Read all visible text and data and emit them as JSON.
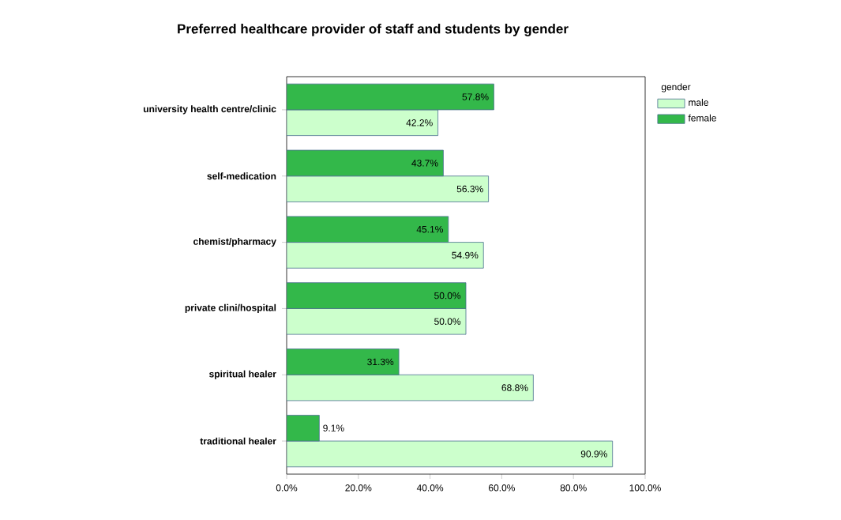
{
  "chart_data": {
    "type": "bar",
    "orientation": "horizontal",
    "title": "Preferred healthcare provider of staff and students by gender",
    "categories": [
      "university health centre/clinic",
      "self-medication",
      "chemist/pharmacy",
      "private clini/hospital",
      "spiritual healer",
      "traditional healer"
    ],
    "series": [
      {
        "name": "male",
        "color": "#ccffcc",
        "values": [
          42.2,
          56.3,
          54.9,
          50.0,
          68.8,
          90.9
        ],
        "value_labels": [
          "42.2%",
          "56.3%",
          "54.9%",
          "50.0%",
          "68.8%",
          "90.9%"
        ]
      },
      {
        "name": "female",
        "color": "#33b84a",
        "values": [
          57.8,
          43.7,
          45.1,
          50.0,
          31.3,
          9.1
        ],
        "value_labels": [
          "57.8%",
          "43.7%",
          "45.1%",
          "50.0%",
          "31.3%",
          "9.1%"
        ]
      }
    ],
    "xlim": [
      0,
      100
    ],
    "xticks": [
      {
        "value": 0,
        "label": "0.0%"
      },
      {
        "value": 20,
        "label": "20.0%"
      },
      {
        "value": 40,
        "label": "40.0%"
      },
      {
        "value": 60,
        "label": "60.0%"
      },
      {
        "value": 80,
        "label": "80.0%"
      },
      {
        "value": 100,
        "label": "100.0%"
      }
    ],
    "legend": "top right",
    "legend_title": "gender",
    "grid": false
  }
}
